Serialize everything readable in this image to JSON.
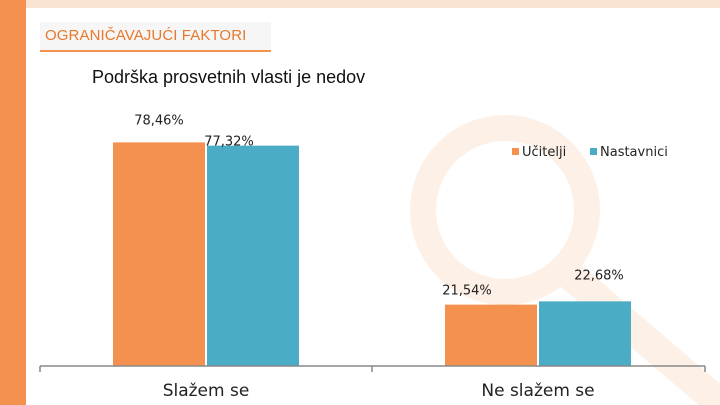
{
  "header": {
    "title": "OGRANIČAVAJUĆI FAKTORI"
  },
  "subtitle": "Podrška prosvetnih vlasti je nedov",
  "colors": {
    "accent": "#f5914e",
    "series1": "#f5914e",
    "series2": "#4bacc6",
    "axis": "#888888"
  },
  "chart_data": {
    "type": "bar",
    "categories": [
      "Slažem se",
      "Ne slažem se"
    ],
    "series": [
      {
        "name": "Učitelji",
        "values": [
          78.46,
          21.54
        ],
        "labels": [
          "78,46%",
          "21,54%"
        ]
      },
      {
        "name": "Nastavnici",
        "values": [
          77.32,
          22.68
        ],
        "labels": [
          "77,32%",
          "22,68%"
        ]
      }
    ],
    "ylim": [
      0,
      100
    ],
    "grid": false,
    "legend": "top-right"
  }
}
